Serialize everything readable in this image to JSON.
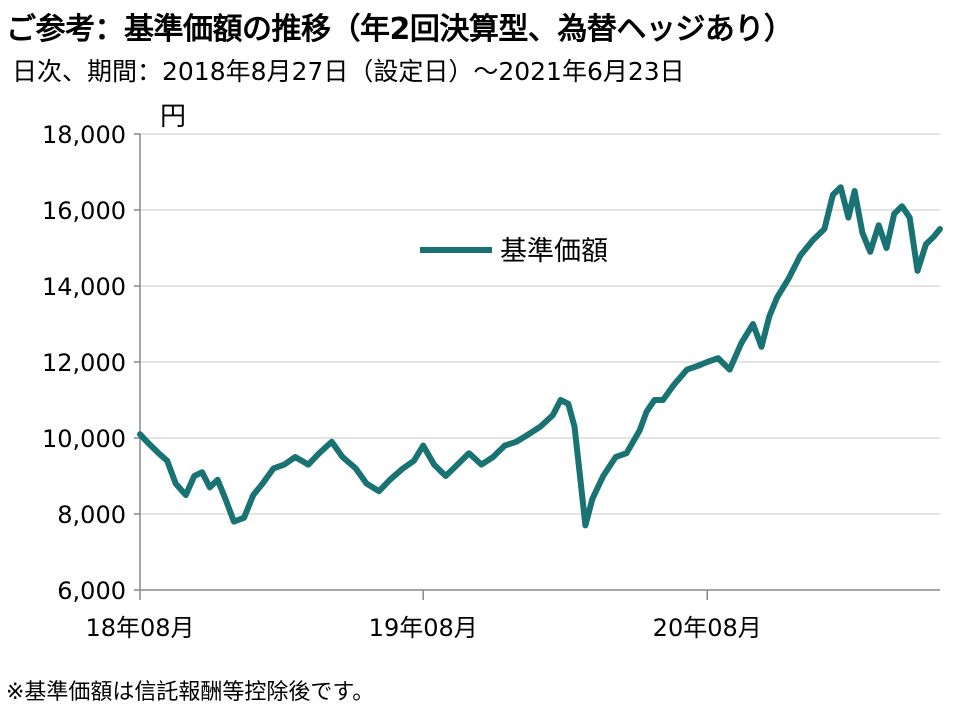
{
  "header": {
    "title": "ご参考：基準価額の推移（年2回決算型、為替ヘッジあり）",
    "subtitle": "日次、期間：2018年8月27日（設定日）～2021年6月23日",
    "unit": "円"
  },
  "footnote": "※基準価額は信託報酬等控除後です。",
  "chart_data": {
    "type": "line",
    "title": "ご参考：基準価額の推移（年2回決算型、為替ヘッジあり）",
    "ylabel": "円",
    "ylim": [
      6000,
      18000
    ],
    "yticks": [
      6000,
      8000,
      10000,
      12000,
      14000,
      16000,
      18000
    ],
    "ytick_labels": [
      "6,000",
      "8,000",
      "10,000",
      "12,000",
      "14,000",
      "16,000",
      "18,000"
    ],
    "xlim": [
      "2018-08-27",
      "2021-06-23"
    ],
    "xticks": [
      "2018-08-27",
      "2019-08-27",
      "2020-08-27"
    ],
    "xtick_labels": [
      "18年08月",
      "19年08月",
      "20年08月"
    ],
    "grid": "horizontal",
    "legend": "center",
    "line_color": "#1a7373",
    "series": [
      {
        "name": "基準価額",
        "x": [
          "2018-08-27",
          "2018-09-05",
          "2018-09-20",
          "2018-10-01",
          "2018-10-12",
          "2018-10-25",
          "2018-11-05",
          "2018-11-15",
          "2018-11-25",
          "2018-12-05",
          "2018-12-15",
          "2018-12-26",
          "2019-01-08",
          "2019-01-20",
          "2019-02-01",
          "2019-02-15",
          "2019-03-01",
          "2019-03-15",
          "2019-04-01",
          "2019-04-15",
          "2019-05-01",
          "2019-05-15",
          "2019-06-01",
          "2019-06-15",
          "2019-07-01",
          "2019-07-15",
          "2019-08-01",
          "2019-08-15",
          "2019-08-27",
          "2019-09-10",
          "2019-09-25",
          "2019-10-10",
          "2019-10-25",
          "2019-11-10",
          "2019-11-25",
          "2019-12-10",
          "2019-12-25",
          "2020-01-10",
          "2020-01-25",
          "2020-02-10",
          "2020-02-20",
          "2020-03-01",
          "2020-03-09",
          "2020-03-16",
          "2020-03-23",
          "2020-04-01",
          "2020-04-15",
          "2020-05-01",
          "2020-05-15",
          "2020-06-01",
          "2020-06-10",
          "2020-06-20",
          "2020-07-01",
          "2020-07-15",
          "2020-08-01",
          "2020-08-15",
          "2020-08-27",
          "2020-09-10",
          "2020-09-25",
          "2020-10-10",
          "2020-10-25",
          "2020-11-05",
          "2020-11-15",
          "2020-11-25",
          "2020-12-10",
          "2020-12-25",
          "2021-01-10",
          "2021-01-25",
          "2021-02-05",
          "2021-02-15",
          "2021-02-25",
          "2021-03-05",
          "2021-03-15",
          "2021-03-25",
          "2021-04-05",
          "2021-04-15",
          "2021-04-25",
          "2021-05-05",
          "2021-05-15",
          "2021-05-25",
          "2021-06-05",
          "2021-06-15",
          "2021-06-23"
        ],
        "values": [
          10100,
          9900,
          9600,
          9400,
          8800,
          8500,
          9000,
          9100,
          8700,
          8900,
          8400,
          7800,
          7900,
          8500,
          8800,
          9200,
          9300,
          9500,
          9300,
          9600,
          9900,
          9500,
          9200,
          8800,
          8600,
          8900,
          9200,
          9400,
          9800,
          9300,
          9000,
          9300,
          9600,
          9300,
          9500,
          9800,
          9900,
          10100,
          10300,
          10600,
          11000,
          10900,
          10300,
          9000,
          7700,
          8400,
          9000,
          9500,
          9600,
          10200,
          10700,
          11000,
          11000,
          11400,
          11800,
          11900,
          12000,
          12100,
          11800,
          12500,
          13000,
          12400,
          13200,
          13700,
          14200,
          14800,
          15200,
          15500,
          16400,
          16600,
          15800,
          16500,
          15400,
          14900,
          15600,
          15000,
          15900,
          16100,
          15800,
          14400,
          15100,
          15300,
          15500
        ]
      }
    ]
  }
}
